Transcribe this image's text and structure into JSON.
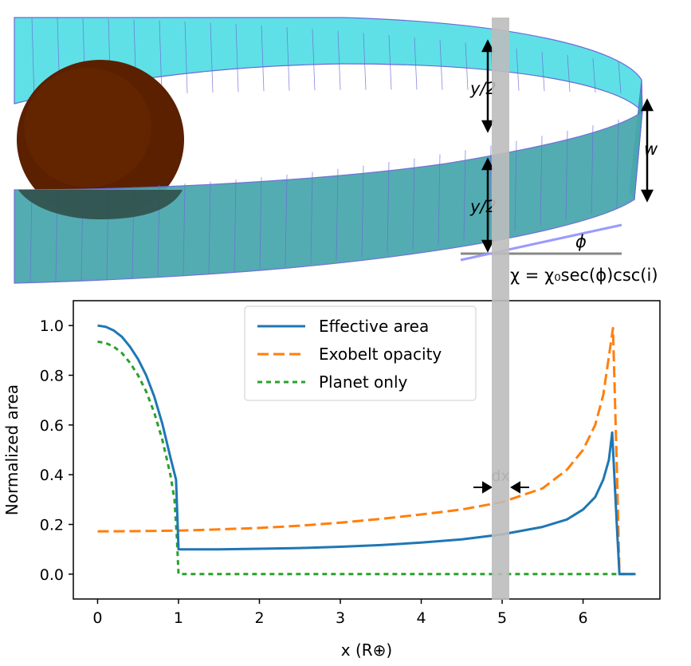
{
  "illustration": {
    "labels": {
      "y_half_top": "y/2",
      "y_half_bottom": "y/2",
      "w": "w",
      "phi": "ϕ",
      "chi_formula": "χ = χ₀sec(ϕ)csc(i)"
    },
    "colors": {
      "ring": "#5fe0e6",
      "planet": "#5a2000",
      "band": "#bdbdbd"
    }
  },
  "chart_data": {
    "type": "line",
    "xlabel": "x (R⊕)",
    "ylabel": "Normalized area",
    "xlim": [
      -0.3,
      6.95
    ],
    "ylim": [
      -0.1,
      1.1
    ],
    "xticks": [
      0,
      1,
      2,
      3,
      4,
      5,
      6
    ],
    "yticks": [
      0.0,
      0.2,
      0.4,
      0.6,
      0.8,
      1.0
    ],
    "legend_position": "top-center",
    "annotation": "dx",
    "highlight_band": [
      4.9,
      5.1
    ],
    "series": [
      {
        "name": "Effective area",
        "color": "#1f77b4",
        "style": "solid",
        "points": [
          [
            0,
            1.0
          ],
          [
            0.1,
            0.995
          ],
          [
            0.2,
            0.98
          ],
          [
            0.3,
            0.955
          ],
          [
            0.4,
            0.915
          ],
          [
            0.5,
            0.865
          ],
          [
            0.6,
            0.8
          ],
          [
            0.7,
            0.715
          ],
          [
            0.8,
            0.605
          ],
          [
            0.9,
            0.47
          ],
          [
            0.97,
            0.38
          ],
          [
            1.0,
            0.1
          ],
          [
            1.5,
            0.1
          ],
          [
            2.0,
            0.102
          ],
          [
            2.5,
            0.105
          ],
          [
            3.0,
            0.11
          ],
          [
            3.5,
            0.117
          ],
          [
            4.0,
            0.127
          ],
          [
            4.5,
            0.14
          ],
          [
            5.0,
            0.16
          ],
          [
            5.5,
            0.19
          ],
          [
            5.8,
            0.22
          ],
          [
            6.0,
            0.26
          ],
          [
            6.15,
            0.31
          ],
          [
            6.25,
            0.38
          ],
          [
            6.32,
            0.46
          ],
          [
            6.36,
            0.57
          ],
          [
            6.42,
            0.18
          ],
          [
            6.45,
            0.0
          ],
          [
            6.65,
            0.0
          ]
        ]
      },
      {
        "name": "Exobelt opacity",
        "color": "#ff7f0e",
        "style": "dashed",
        "points": [
          [
            0,
            0.172
          ],
          [
            0.5,
            0.173
          ],
          [
            1.0,
            0.175
          ],
          [
            1.5,
            0.18
          ],
          [
            2.0,
            0.186
          ],
          [
            2.5,
            0.195
          ],
          [
            3.0,
            0.207
          ],
          [
            3.5,
            0.222
          ],
          [
            4.0,
            0.24
          ],
          [
            4.5,
            0.26
          ],
          [
            5.0,
            0.29
          ],
          [
            5.5,
            0.345
          ],
          [
            5.8,
            0.42
          ],
          [
            6.0,
            0.5
          ],
          [
            6.15,
            0.6
          ],
          [
            6.25,
            0.72
          ],
          [
            6.33,
            0.9
          ],
          [
            6.37,
            0.99
          ],
          [
            6.42,
            0.4
          ],
          [
            6.45,
            0.0
          ],
          [
            6.65,
            0.0
          ]
        ]
      },
      {
        "name": "Planet only",
        "color": "#2ca02c",
        "style": "dotted",
        "points": [
          [
            0,
            0.935
          ],
          [
            0.1,
            0.93
          ],
          [
            0.2,
            0.915
          ],
          [
            0.3,
            0.89
          ],
          [
            0.4,
            0.85
          ],
          [
            0.5,
            0.8
          ],
          [
            0.6,
            0.735
          ],
          [
            0.7,
            0.65
          ],
          [
            0.8,
            0.54
          ],
          [
            0.9,
            0.4
          ],
          [
            0.95,
            0.3
          ],
          [
            0.98,
            0.15
          ],
          [
            1.0,
            0.0
          ],
          [
            6.65,
            0.0
          ]
        ]
      }
    ]
  }
}
